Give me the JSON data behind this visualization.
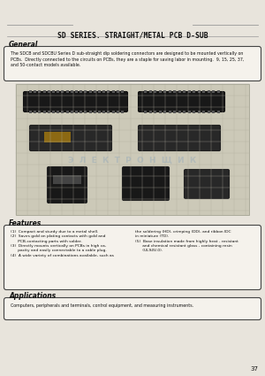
{
  "title": "SD SERIES. STRAIGHT/METAL PCB D-SUB",
  "bg_color": "#e8e4dc",
  "page_number": "37",
  "general_heading": "General",
  "general_text": "The SDCB and SDCBU Series D sub-straight dip soldering connectors are designed to be mounted vertically on\nPCBs.  Directly connected to the circuits on PCBs, they are a staple for saving labor in mounting.  9, 15, 25, 37,\nand 50-contact models available.",
  "features_heading": "Features",
  "feat_left": "(1)  Compact and sturdy due to a metal shell.\n(2)  Saves gold on plating contacts with gold and\n      PCB-contacting parts with solder.\n(3)  Directly mounts vertically on PCBs in high ca-\n      pacity and easily connectable to a cable plug.\n(4)  A wide variety of combinations available, such as",
  "feat_right": "the soldering (HD), crimping (DD), and ribbon IDC\nin miniature (TD).\n(5)  Base insulation made from highly heat - resistant\n      and chemical resistant glass - containing resin\n      (UL94V-0).",
  "applications_heading": "Applications",
  "applications_text": "Computers, peripherals and terminals, control equipment, and measuring instruments.",
  "title_line_color": "#999999",
  "box_border_color": "#444444",
  "text_color": "#111111",
  "heading_color": "#111111",
  "img_bg": "#ccc9b8",
  "grid_color": "#b0ad9e",
  "conn_dark": "#181818",
  "conn_mid": "#282828",
  "watermark_color": "#7799bb",
  "watermark_alpha": 0.3
}
